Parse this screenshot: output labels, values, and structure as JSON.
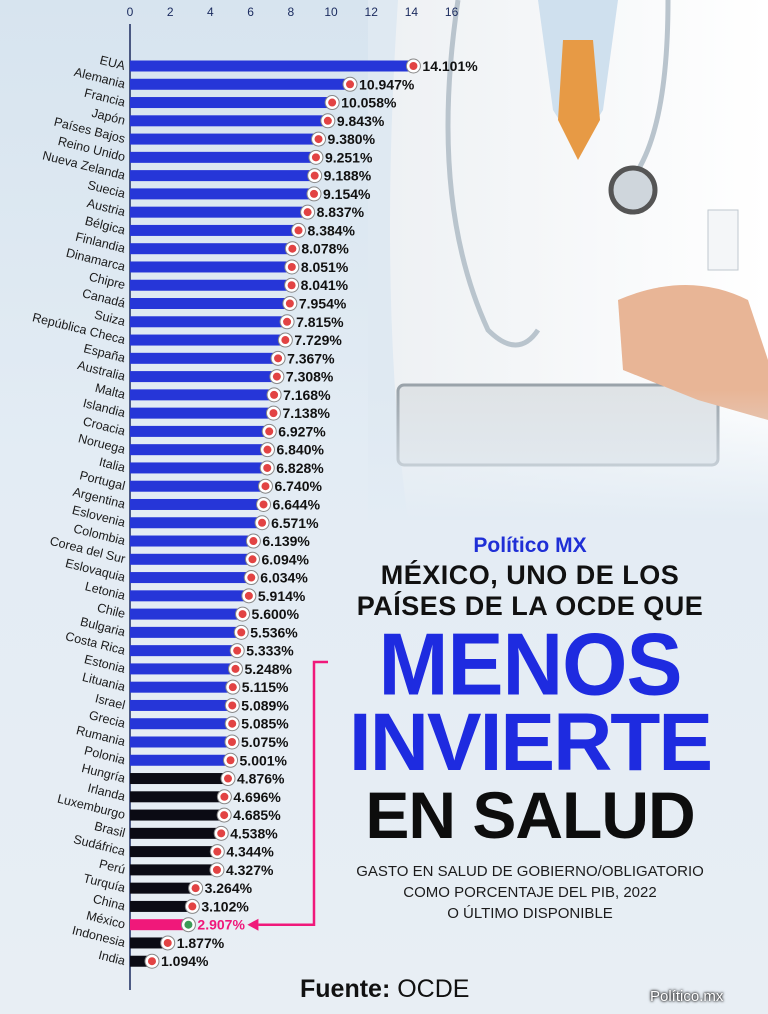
{
  "brand": "Político MX",
  "headline": {
    "line1": "MÉXICO, UNO DE LOS",
    "line2": "PAÍSES DE LA OCDE QUE",
    "line3": "MENOS",
    "line4": "INVIERTE",
    "line5": "EN SALUD"
  },
  "subtitle": {
    "line1": "GASTO EN SALUD DE GOBIERNO/OBLIGATORIO",
    "line2": "COMO PORCENTAJE DEL PIB, 2022",
    "line3": "O ÚLTIMO DISPONIBLE"
  },
  "source": {
    "label": "Fuente:",
    "value": "OCDE"
  },
  "watermark": "Político.mx",
  "colors": {
    "bar_blue": "#2636d8",
    "bar_black": "#0b0b14",
    "mexico_pink": "#f0187a",
    "headline_blue": "#1e2be0"
  },
  "chart_data": {
    "type": "bar",
    "orientation": "horizontal",
    "xlim": [
      0,
      16
    ],
    "x_ticks": [
      "0",
      "2",
      "4",
      "6",
      "8",
      "10",
      "12",
      "14",
      "16"
    ],
    "highlight": "México",
    "categories": [
      "EUA",
      "Alemania",
      "Francia",
      "Japón",
      "Países Bajos",
      "Reino Unido",
      "Nueva Zelanda",
      "Suecia",
      "Austria",
      "Bélgica",
      "Finlandia",
      "Dinamarca",
      "Chipre",
      "Canadá",
      "Suiza",
      "República Checa",
      "España",
      "Australia",
      "Malta",
      "Islandia",
      "Croacia",
      "Noruega",
      "Italia",
      "Portugal",
      "Argentina",
      "Eslovenia",
      "Colombia",
      "Corea del Sur",
      "Eslovaquia",
      "Letonia",
      "Chile",
      "Bulgaria",
      "Costa Rica",
      "Estonia",
      "Lituania",
      "Israel",
      "Grecia",
      "Rumania",
      "Polonia",
      "Hungría",
      "Irlanda",
      "Luxemburgo",
      "Brasil",
      "Sudáfrica",
      "Perú",
      "Turquía",
      "China",
      "México",
      "Indonesia",
      "India"
    ],
    "values": [
      14.101,
      10.947,
      10.058,
      9.843,
      9.38,
      9.251,
      9.188,
      9.154,
      8.837,
      8.384,
      8.078,
      8.051,
      8.041,
      7.954,
      7.815,
      7.729,
      7.367,
      7.308,
      7.168,
      7.138,
      6.927,
      6.84,
      6.828,
      6.74,
      6.644,
      6.571,
      6.139,
      6.094,
      6.034,
      5.914,
      5.6,
      5.536,
      5.333,
      5.248,
      5.115,
      5.089,
      5.085,
      5.075,
      5.001,
      4.876,
      4.696,
      4.685,
      4.538,
      4.344,
      4.327,
      3.264,
      3.102,
      2.907,
      1.877,
      1.094
    ],
    "labels": [
      "14.101%",
      "10.947%",
      "10.058%",
      "9.843%",
      "9.380%",
      "9.251%",
      "9.188%",
      "9.154%",
      "8.837%",
      "8.384%",
      "8.078%",
      "8.051%",
      "8.041%",
      "7.954%",
      "7.815%",
      "7.729%",
      "7.367%",
      "7.308%",
      "7.168%",
      "7.138%",
      "6.927%",
      "6.840%",
      "6.828%",
      "6.740%",
      "6.644%",
      "6.571%",
      "6.139%",
      "6.094%",
      "6.034%",
      "5.914%",
      "5.600%",
      "5.536%",
      "5.333%",
      "5.248%",
      "5.115%",
      "5.089%",
      "5.085%",
      "5.075%",
      "5.001%",
      "4.876%",
      "4.696%",
      "4.685%",
      "4.538%",
      "4.344%",
      "4.327%",
      "3.264%",
      "3.102%",
      "2.907%",
      "1.877%",
      "1.094%"
    ]
  }
}
